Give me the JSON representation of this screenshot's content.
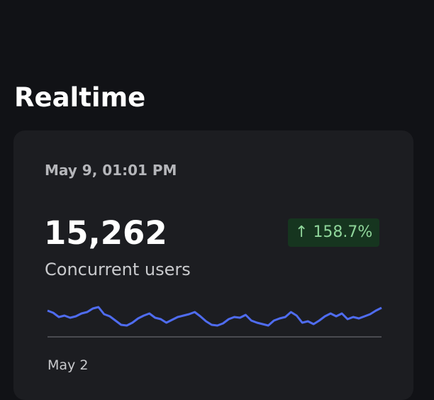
{
  "page": {
    "title": "Realtime"
  },
  "card": {
    "date": "May 9, 01:01 PM",
    "value": "15,262",
    "label": "Concurrent users",
    "change": "158.7%",
    "sparkline": {
      "type": "line",
      "color": "#4f6cf0",
      "ylim": [
        0,
        40
      ],
      "values": [
        32,
        29,
        23,
        25,
        22,
        24,
        28,
        30,
        35,
        37,
        27,
        24,
        18,
        12,
        11,
        15,
        21,
        25,
        28,
        22,
        20,
        15,
        19,
        23,
        25,
        27,
        30,
        24,
        17,
        12,
        11,
        14,
        20,
        23,
        22,
        26,
        18,
        15,
        13,
        11,
        18,
        21,
        23,
        30,
        25,
        15,
        17,
        13,
        18,
        24,
        28,
        24,
        28,
        20,
        23,
        21,
        24,
        27,
        32,
        36
      ],
      "x_label": "May 2"
    }
  }
}
